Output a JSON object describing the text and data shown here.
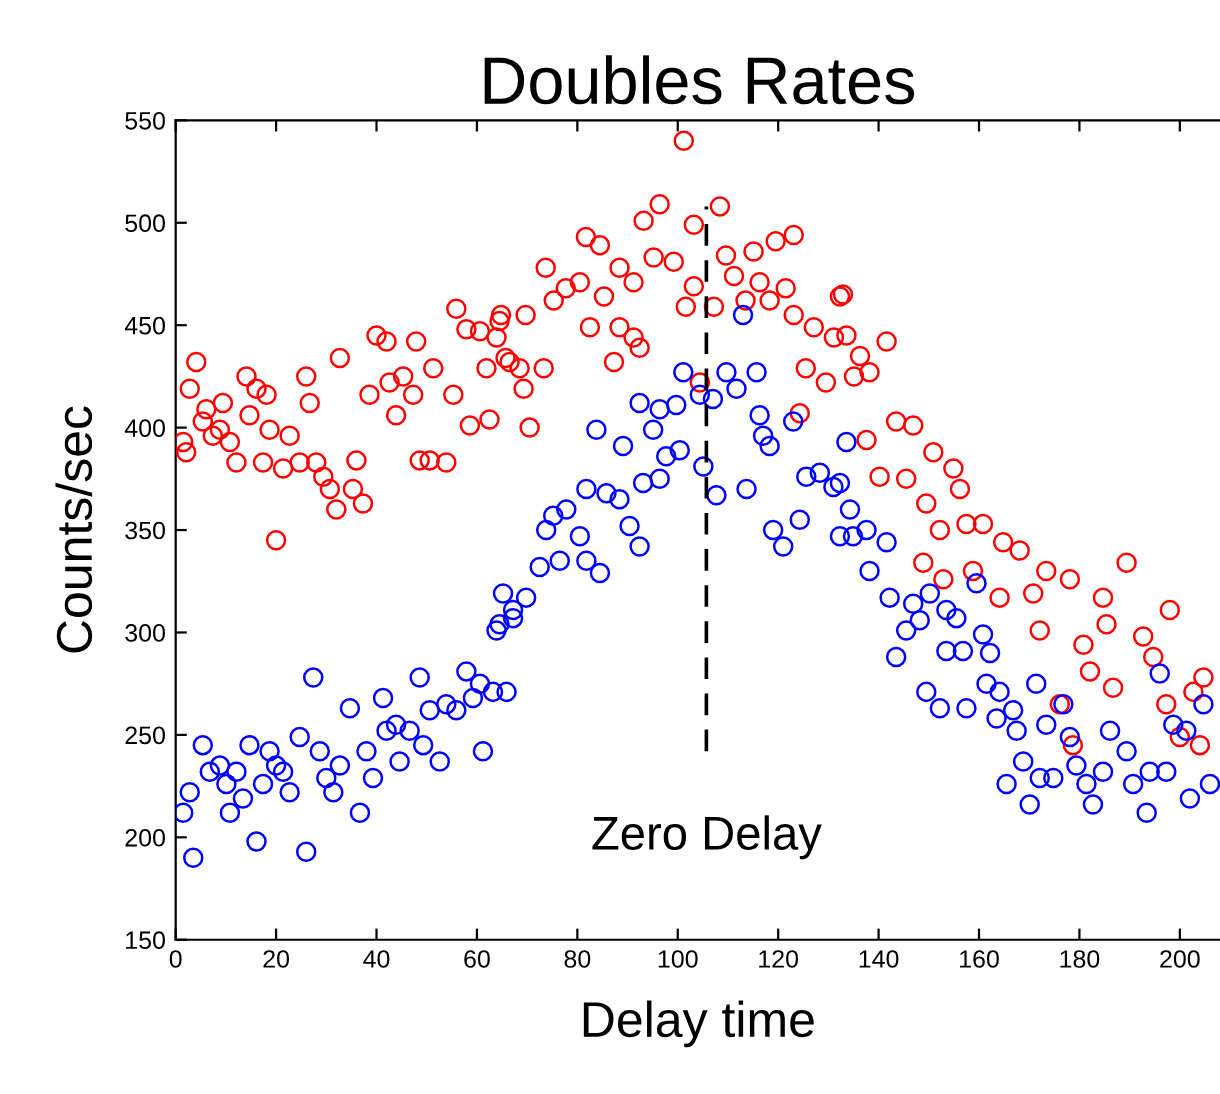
{
  "chart_data": {
    "type": "scatter",
    "title": "Doubles Rates",
    "xlabel": "Delay time",
    "ylabel": "Counts/sec",
    "xlim": [
      0,
      208
    ],
    "ylim": [
      150,
      550
    ],
    "xticks": [
      0,
      20,
      40,
      60,
      80,
      100,
      120,
      140,
      160,
      180,
      200
    ],
    "yticks": [
      150,
      200,
      250,
      300,
      350,
      400,
      450,
      500,
      550
    ],
    "grid": false,
    "marker": "circle",
    "ref_lines": [
      {
        "axis": "x",
        "value": 105.7,
        "label": "Zero Delay",
        "line_style": "dashed",
        "color": "#000000"
      }
    ],
    "series": [
      {
        "color": "#ff0000",
        "x": [
          1.5,
          2.1,
          4.1,
          2.8,
          5.4,
          6.1,
          7.4,
          8.8,
          9.4,
          10.8,
          12.1,
          14.1,
          14.7,
          16.1,
          17.4,
          18.1,
          18.7,
          20,
          21.4,
          22.7,
          24.7,
          26,
          26.7,
          28,
          29.4,
          30.7,
          32,
          32.7,
          35.3,
          36,
          37.3,
          38.6,
          40,
          42,
          42.6,
          43.9,
          45.3,
          47.3,
          47.9,
          48.6,
          50.6,
          51.3,
          53.9,
          55.3,
          55.9,
          57.9,
          58.6,
          60.6,
          62.5,
          61.9,
          63.9,
          64.8,
          66.5,
          101.2,
          96.4,
          93.2,
          103.2,
          108.4,
          81.7,
          84.5,
          73.7,
          88.4,
          95.2,
          99.2,
          109.6,
          115.1,
          119.5,
          123.1,
          77.7,
          80.5,
          85.3,
          91.2,
          103.2,
          111.2,
          116.3,
          118.3,
          121.5,
          132.3,
          64.5,
          69.7,
          75.3,
          82.5,
          88.4,
          91.2,
          101.6,
          107.2,
          113.5,
          123.1,
          127.1,
          131.1,
          65.7,
          68.5,
          73.3,
          87.3,
          92.4,
          69.3,
          104.4,
          125.5,
          129.5,
          135.1,
          70.5,
          124.3,
          132.9,
          133.6,
          141.6,
          136.3,
          138.2,
          143.5,
          146.9,
          137.6,
          150.9,
          140.2,
          145.5,
          154.9,
          156.2,
          149.5,
          152.2,
          157.5,
          160.8,
          148.9,
          152.9,
          158.8,
          164.8,
          168.1,
          164.1,
          170.8,
          173.4,
          178.1,
          172.1,
          180.8,
          184.7,
          185.4,
          182.1,
          189.4,
          192.7,
          198,
          194.7,
          186.7,
          197.3,
          202.7,
          204.7,
          200,
          204,
          178.7,
          176.1
        ],
        "values": [
          393,
          388,
          432,
          419,
          403,
          409,
          396,
          399,
          412,
          393,
          383,
          425,
          406,
          419,
          383,
          416,
          399,
          345,
          380,
          396,
          383,
          425,
          412,
          383,
          376,
          370,
          360,
          434,
          370,
          384,
          363,
          416,
          445,
          442,
          422,
          406,
          425,
          416,
          442,
          384,
          384,
          429,
          383,
          416,
          458,
          448,
          401,
          447,
          404,
          429,
          444,
          455,
          432,
          540,
          509,
          501,
          499,
          508,
          493,
          489,
          478,
          478,
          483,
          481,
          484,
          486,
          491,
          494,
          468,
          471,
          464,
          471,
          469,
          474,
          471,
          462,
          468,
          464,
          452,
          455,
          462,
          449,
          449,
          444,
          459,
          459,
          462,
          455,
          449,
          444,
          434,
          429,
          429,
          432,
          439,
          419,
          422,
          429,
          422,
          425,
          400,
          407,
          465,
          445,
          442,
          435,
          427,
          403,
          401,
          394,
          388,
          376,
          375,
          380,
          370,
          363,
          350,
          353,
          353,
          334,
          326,
          330,
          344,
          340,
          317,
          319,
          330,
          326,
          301,
          294,
          317,
          304,
          281,
          334,
          298,
          311,
          288,
          273,
          265,
          271,
          278,
          249,
          245,
          245,
          265
        ]
      },
      {
        "color": "#0000ff",
        "x": [
          1.5,
          2.8,
          3.5,
          5.4,
          6.8,
          8.8,
          10.1,
          10.8,
          12.1,
          13.4,
          14.7,
          16.1,
          17.4,
          18.7,
          20,
          21.4,
          22.7,
          24.7,
          26,
          27.4,
          28.7,
          30,
          31.4,
          32.7,
          34.7,
          36.7,
          38,
          39.3,
          41.3,
          42,
          43.9,
          44.6,
          46.6,
          48.6,
          49.3,
          50.6,
          52.6,
          53.9,
          55.9,
          57.9,
          59.2,
          60.6,
          61.2,
          63.2,
          63.9,
          65.2,
          65.9,
          67.2,
          113,
          101.1,
          104.4,
          109.7,
          115.7,
          111.7,
          92.4,
          96.4,
          99.7,
          107,
          83.8,
          89.1,
          95.1,
          116.3,
          117,
          123,
          118.3,
          97.7,
          100.4,
          93.1,
          96.4,
          105.1,
          107.7,
          113.7,
          125.6,
          128.3,
          131,
          81.8,
          85.8,
          88.4,
          77.8,
          75.2,
          73.8,
          90.4,
          92.4,
          80.5,
          76.5,
          81.8,
          84.5,
          119,
          121,
          124.3,
          132.3,
          134.9,
          72.5,
          69.8,
          67.2,
          64.5,
          133.6,
          132.3,
          134.3,
          137.6,
          141.6,
          138.2,
          142.2,
          146.9,
          150.2,
          145.5,
          143.5,
          148.2,
          153.5,
          155.5,
          159.5,
          153.5,
          156.8,
          160.8,
          162.2,
          149.5,
          152.2,
          157.5,
          161.5,
          164.1,
          163.5,
          166.8,
          167.5,
          171.4,
          168.8,
          165.5,
          170.1,
          172.1,
          174.8,
          173.4,
          176.8,
          178.1,
          179.4,
          181.4,
          182.7,
          184.7,
          186.1,
          189.4,
          190.7,
          193.4,
          194,
          196,
          197.3,
          198.7,
          201.3,
          202,
          204.7,
          206
        ],
        "values": [
          212,
          222,
          190,
          245,
          232,
          235,
          226,
          212,
          232,
          219,
          245,
          198,
          226,
          242,
          235,
          232,
          222,
          249,
          193,
          278,
          242,
          229,
          222,
          235,
          263,
          212,
          242,
          229,
          268,
          252,
          255,
          237,
          252,
          278,
          245,
          262,
          237,
          265,
          262,
          281,
          268,
          275,
          242,
          271,
          301,
          319,
          271,
          307,
          455,
          427,
          416,
          427,
          427,
          419,
          412,
          409,
          411,
          414,
          399,
          391,
          399,
          406,
          396,
          403,
          391,
          386,
          389,
          373,
          375,
          381,
          367,
          370,
          376,
          378,
          371,
          370,
          368,
          365,
          360,
          357,
          350,
          352,
          342,
          347,
          335,
          335,
          329,
          350,
          342,
          355,
          347,
          347,
          332,
          317,
          311,
          304,
          393,
          373,
          360,
          350,
          344,
          330,
          317,
          314,
          319,
          301,
          288,
          306,
          311,
          307,
          324,
          291,
          291,
          299,
          290,
          271,
          263,
          263,
          275,
          271,
          258,
          262,
          252,
          275,
          237,
          226,
          216,
          229,
          229,
          255,
          265,
          249,
          235,
          226,
          216,
          232,
          252,
          242,
          226,
          212,
          232,
          280,
          232,
          255,
          252,
          219,
          265,
          226
        ]
      }
    ]
  }
}
